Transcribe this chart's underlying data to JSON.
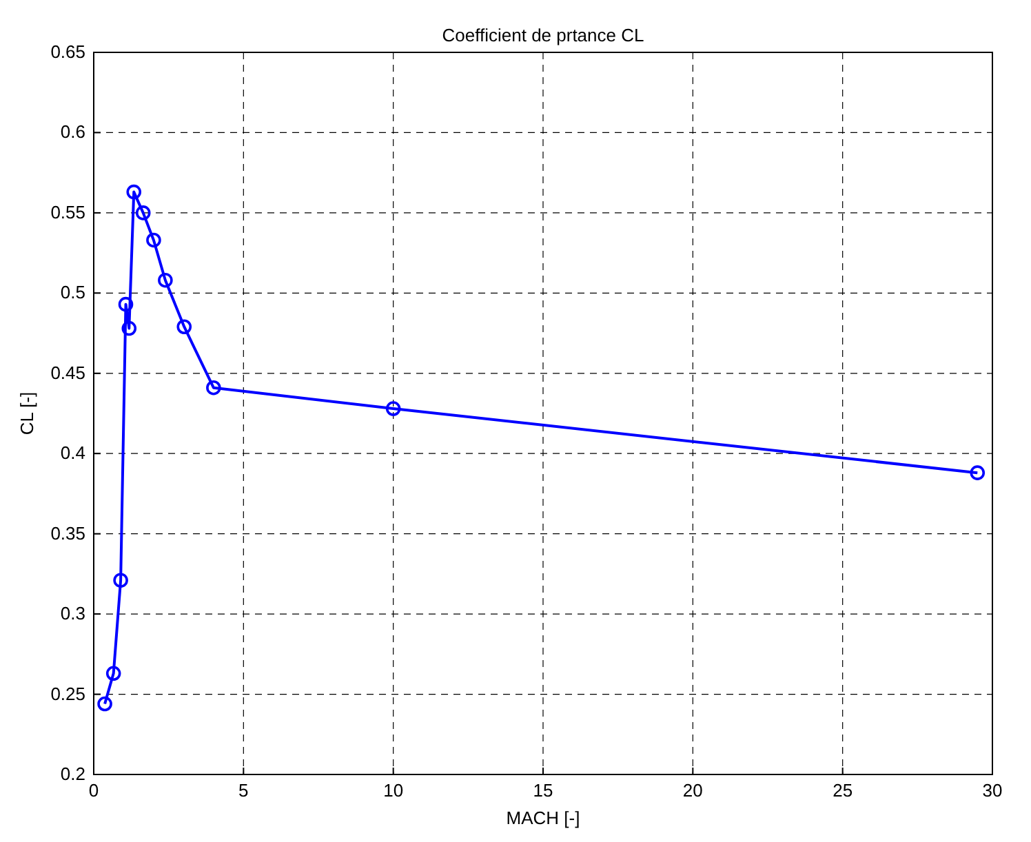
{
  "chart_data": {
    "type": "line",
    "title": "Coefficient de prtance CL",
    "xlabel": "MACH [-]",
    "ylabel": "CL [-]",
    "series": [
      {
        "color": "#0000ff",
        "x": [
          0.37,
          0.66,
          0.9,
          1.07,
          1.18,
          1.34,
          1.65,
          2.0,
          2.39,
          3.02,
          4.0,
          10.0,
          29.5
        ],
        "values": [
          0.244,
          0.263,
          0.321,
          0.493,
          0.478,
          0.563,
          0.55,
          0.533,
          0.508,
          0.479,
          0.441,
          0.428,
          0.388
        ]
      }
    ],
    "xlim": [
      0,
      30
    ],
    "xticks": [
      0,
      5,
      10,
      15,
      20,
      25,
      30
    ],
    "ylim": [
      0.2,
      0.65
    ],
    "yticks": [
      0.2,
      0.25,
      0.3,
      0.35,
      0.4,
      0.45,
      0.5,
      0.55,
      0.6,
      0.65
    ],
    "grid": true,
    "marker": "circle",
    "line_style": "solid"
  }
}
